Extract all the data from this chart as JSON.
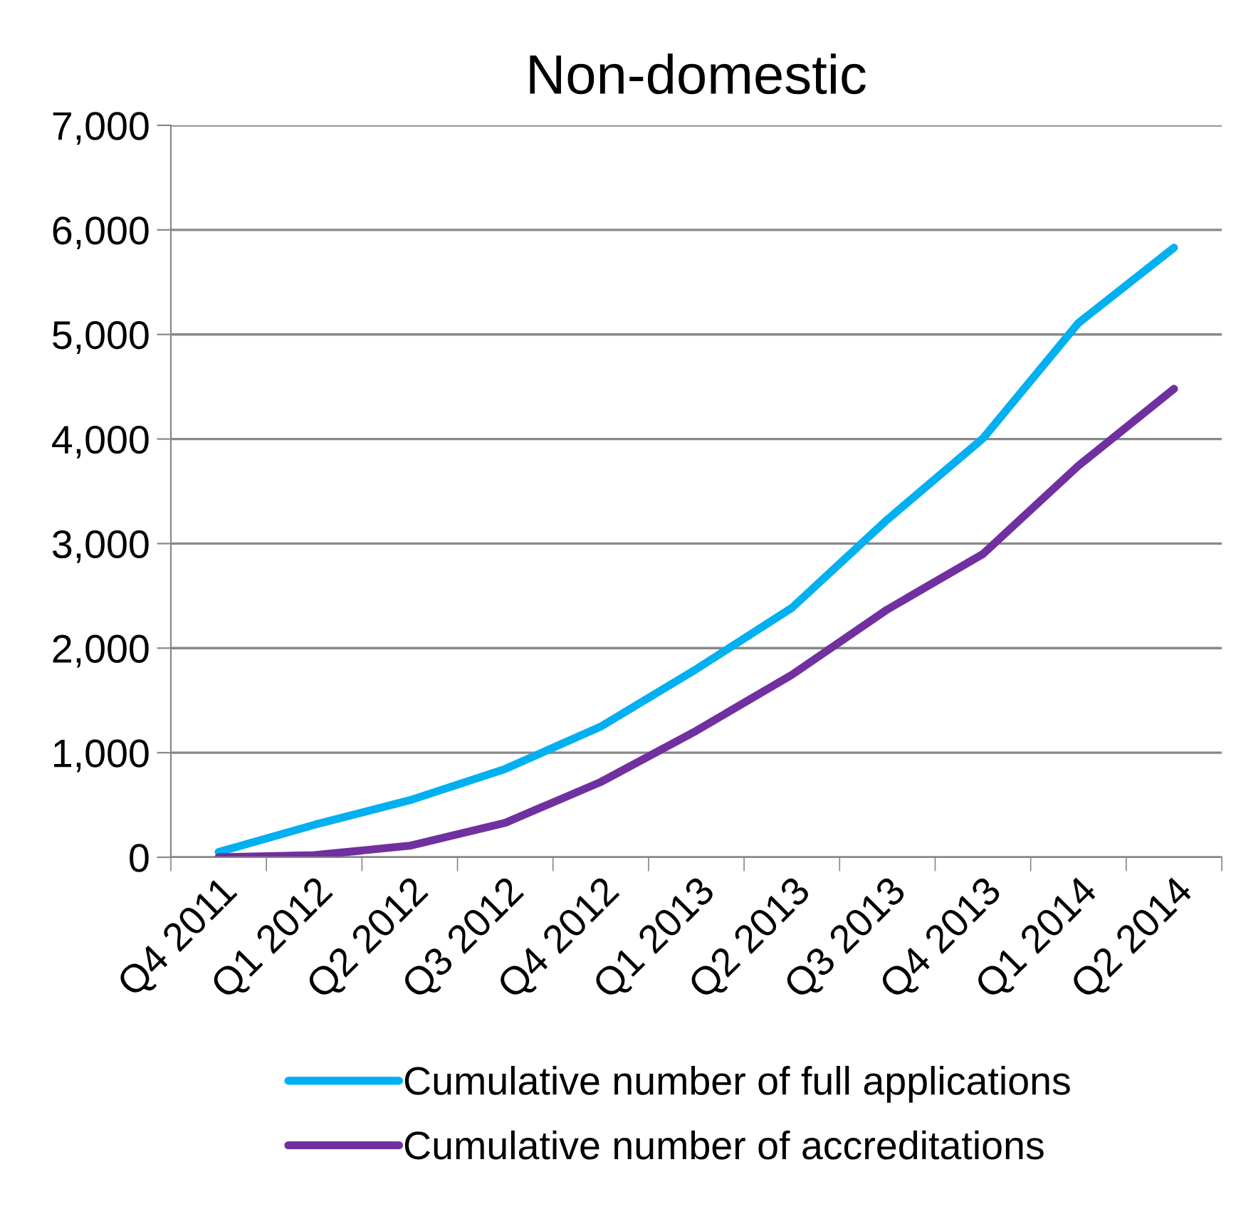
{
  "chart_data": {
    "type": "line",
    "title": "Non-domestic",
    "categories": [
      "Q4 2011",
      "Q1 2012",
      "Q2 2012",
      "Q3 2012",
      "Q4 2012",
      "Q1 2013",
      "Q2 2013",
      "Q3 2013",
      "Q4 2013",
      "Q1 2014",
      "Q2 2014"
    ],
    "series": [
      {
        "name": "Cumulative number of full applications",
        "color": "#00b0f0",
        "values": [
          50,
          310,
          545,
          845,
          1250,
          1800,
          2385,
          3230,
          4005,
          5110,
          5830
        ]
      },
      {
        "name": "Cumulative number of accreditations",
        "color": "#7030a0",
        "values": [
          0,
          20,
          110,
          330,
          720,
          1210,
          1745,
          2370,
          2900,
          3745,
          4480
        ]
      }
    ],
    "ylim": [
      0,
      7000
    ],
    "yticks": [
      {
        "value": 0,
        "label": "0"
      },
      {
        "value": 1000,
        "label": "1,000"
      },
      {
        "value": 2000,
        "label": "2,000"
      },
      {
        "value": 3000,
        "label": "3,000"
      },
      {
        "value": 4000,
        "label": "4,000"
      },
      {
        "value": 5000,
        "label": "5,000"
      },
      {
        "value": 6000,
        "label": "6,000"
      },
      {
        "value": 7000,
        "label": "7,000"
      }
    ],
    "grid": "y",
    "legend": "bottom",
    "marker": "none",
    "line_style": "solid"
  }
}
